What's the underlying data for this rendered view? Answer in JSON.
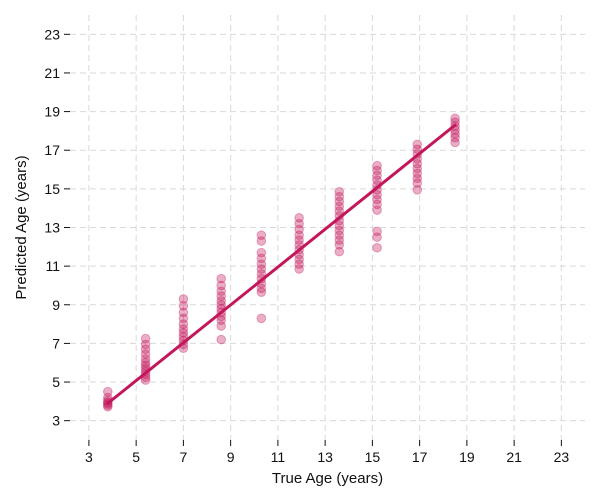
{
  "chart_data": {
    "type": "scatter",
    "xlabel": "True Age (years)",
    "ylabel": "Predicted Age (years)",
    "xlim": [
      2.2,
      24.0
    ],
    "ylim": [
      2.0,
      24.0
    ],
    "x_ticks": [
      3,
      5,
      7,
      9,
      11,
      13,
      15,
      17,
      19,
      21,
      23
    ],
    "y_ticks": [
      3,
      5,
      7,
      9,
      11,
      13,
      15,
      17,
      19,
      21,
      23
    ],
    "grid": true,
    "colors": {
      "point": "#c2185b",
      "line": "#c2185b",
      "grid": "#d9d9d9",
      "text": "#111111"
    },
    "series": [
      {
        "type": "scatter",
        "points": [
          {
            "x": 3.8,
            "y": 4.5
          },
          {
            "x": 3.8,
            "y": 4.2
          },
          {
            "x": 3.8,
            "y": 4.05
          },
          {
            "x": 3.8,
            "y": 3.95
          },
          {
            "x": 3.8,
            "y": 3.88
          },
          {
            "x": 3.8,
            "y": 3.8
          },
          {
            "x": 3.8,
            "y": 3.72
          },
          {
            "x": 5.4,
            "y": 7.25
          },
          {
            "x": 5.4,
            "y": 6.95
          },
          {
            "x": 5.4,
            "y": 6.7
          },
          {
            "x": 5.4,
            "y": 6.45
          },
          {
            "x": 5.4,
            "y": 6.2
          },
          {
            "x": 5.4,
            "y": 6.0
          },
          {
            "x": 5.4,
            "y": 5.85
          },
          {
            "x": 5.4,
            "y": 5.7
          },
          {
            "x": 5.4,
            "y": 5.55
          },
          {
            "x": 5.4,
            "y": 5.4
          },
          {
            "x": 5.4,
            "y": 5.25
          },
          {
            "x": 5.4,
            "y": 5.1
          },
          {
            "x": 7.0,
            "y": 9.3
          },
          {
            "x": 7.0,
            "y": 8.95
          },
          {
            "x": 7.0,
            "y": 8.6
          },
          {
            "x": 7.0,
            "y": 8.3
          },
          {
            "x": 7.0,
            "y": 8.0
          },
          {
            "x": 7.0,
            "y": 7.75
          },
          {
            "x": 7.0,
            "y": 7.55
          },
          {
            "x": 7.0,
            "y": 7.35
          },
          {
            "x": 7.0,
            "y": 7.15
          },
          {
            "x": 7.0,
            "y": 6.95
          },
          {
            "x": 7.0,
            "y": 6.75
          },
          {
            "x": 8.6,
            "y": 10.35
          },
          {
            "x": 8.6,
            "y": 10.0
          },
          {
            "x": 8.6,
            "y": 9.7
          },
          {
            "x": 8.6,
            "y": 9.45
          },
          {
            "x": 8.6,
            "y": 9.2
          },
          {
            "x": 8.6,
            "y": 9.0
          },
          {
            "x": 8.6,
            "y": 8.8
          },
          {
            "x": 8.6,
            "y": 8.6
          },
          {
            "x": 8.6,
            "y": 8.4
          },
          {
            "x": 8.6,
            "y": 8.2
          },
          {
            "x": 8.6,
            "y": 7.9
          },
          {
            "x": 8.6,
            "y": 7.2
          },
          {
            "x": 10.3,
            "y": 12.6
          },
          {
            "x": 10.3,
            "y": 12.3
          },
          {
            "x": 10.3,
            "y": 11.7
          },
          {
            "x": 10.3,
            "y": 11.4
          },
          {
            "x": 10.3,
            "y": 11.1
          },
          {
            "x": 10.3,
            "y": 10.85
          },
          {
            "x": 10.3,
            "y": 10.6
          },
          {
            "x": 10.3,
            "y": 10.35
          },
          {
            "x": 10.3,
            "y": 10.1
          },
          {
            "x": 10.3,
            "y": 9.85
          },
          {
            "x": 10.3,
            "y": 9.65
          },
          {
            "x": 10.3,
            "y": 8.3
          },
          {
            "x": 11.9,
            "y": 13.5
          },
          {
            "x": 11.9,
            "y": 13.2
          },
          {
            "x": 11.9,
            "y": 12.9
          },
          {
            "x": 11.9,
            "y": 12.6
          },
          {
            "x": 11.9,
            "y": 12.35
          },
          {
            "x": 11.9,
            "y": 12.1
          },
          {
            "x": 11.9,
            "y": 11.85
          },
          {
            "x": 11.9,
            "y": 11.6
          },
          {
            "x": 11.9,
            "y": 11.35
          },
          {
            "x": 11.9,
            "y": 11.1
          },
          {
            "x": 11.9,
            "y": 10.85
          },
          {
            "x": 13.6,
            "y": 14.85
          },
          {
            "x": 13.6,
            "y": 14.6
          },
          {
            "x": 13.6,
            "y": 14.35
          },
          {
            "x": 13.6,
            "y": 14.1
          },
          {
            "x": 13.6,
            "y": 13.85
          },
          {
            "x": 13.6,
            "y": 13.6
          },
          {
            "x": 13.6,
            "y": 13.35
          },
          {
            "x": 13.6,
            "y": 13.1
          },
          {
            "x": 13.6,
            "y": 12.85
          },
          {
            "x": 13.6,
            "y": 12.6
          },
          {
            "x": 13.6,
            "y": 12.35
          },
          {
            "x": 13.6,
            "y": 12.1
          },
          {
            "x": 13.6,
            "y": 11.75
          },
          {
            "x": 15.2,
            "y": 16.2
          },
          {
            "x": 15.2,
            "y": 15.95
          },
          {
            "x": 15.2,
            "y": 15.7
          },
          {
            "x": 15.2,
            "y": 15.45
          },
          {
            "x": 15.2,
            "y": 15.2
          },
          {
            "x": 15.2,
            "y": 14.95
          },
          {
            "x": 15.2,
            "y": 14.7
          },
          {
            "x": 15.2,
            "y": 14.45
          },
          {
            "x": 15.2,
            "y": 14.2
          },
          {
            "x": 15.2,
            "y": 13.9
          },
          {
            "x": 15.2,
            "y": 12.8
          },
          {
            "x": 15.2,
            "y": 12.5
          },
          {
            "x": 15.2,
            "y": 11.95
          },
          {
            "x": 16.9,
            "y": 17.3
          },
          {
            "x": 16.9,
            "y": 17.05
          },
          {
            "x": 16.9,
            "y": 16.8
          },
          {
            "x": 16.9,
            "y": 16.55
          },
          {
            "x": 16.9,
            "y": 16.3
          },
          {
            "x": 16.9,
            "y": 16.05
          },
          {
            "x": 16.9,
            "y": 15.8
          },
          {
            "x": 16.9,
            "y": 15.55
          },
          {
            "x": 16.9,
            "y": 15.3
          },
          {
            "x": 16.9,
            "y": 14.95
          },
          {
            "x": 18.5,
            "y": 18.65
          },
          {
            "x": 18.5,
            "y": 18.45
          },
          {
            "x": 18.5,
            "y": 18.25
          },
          {
            "x": 18.5,
            "y": 18.05
          },
          {
            "x": 18.5,
            "y": 17.85
          },
          {
            "x": 18.5,
            "y": 17.65
          },
          {
            "x": 18.5,
            "y": 17.4
          }
        ]
      },
      {
        "type": "line",
        "points": [
          {
            "x": 3.8,
            "y": 3.9
          },
          {
            "x": 18.5,
            "y": 18.3
          }
        ]
      }
    ]
  }
}
